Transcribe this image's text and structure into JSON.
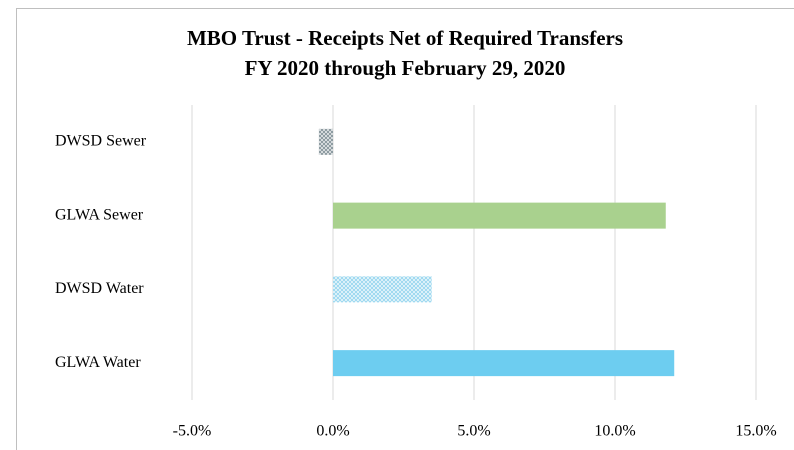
{
  "chart_data": {
    "type": "hbar",
    "title": [
      "MBO Trust - Receipts Net of Required Transfers",
      "FY 2020 through February 29, 2020"
    ],
    "categories": [
      "DWSD Sewer",
      "GLWA Sewer",
      "DWSD Water",
      "GLWA Water"
    ],
    "values": [
      -0.5,
      11.8,
      3.5,
      12.1
    ],
    "colors": [
      "#8c9aa0",
      "#a9d18e",
      "#9fd9f0",
      "#6dcdf0"
    ],
    "hatched": [
      true,
      false,
      true,
      false
    ],
    "xlim": [
      -5,
      15
    ],
    "xticks": [
      {
        "value": -5,
        "label": "-5.0%"
      },
      {
        "value": 0,
        "label": "0.0%"
      },
      {
        "value": 5,
        "label": "5.0%"
      },
      {
        "value": 10,
        "label": "10.0%"
      },
      {
        "value": 15,
        "label": "15.0%"
      }
    ],
    "grid": true
  }
}
